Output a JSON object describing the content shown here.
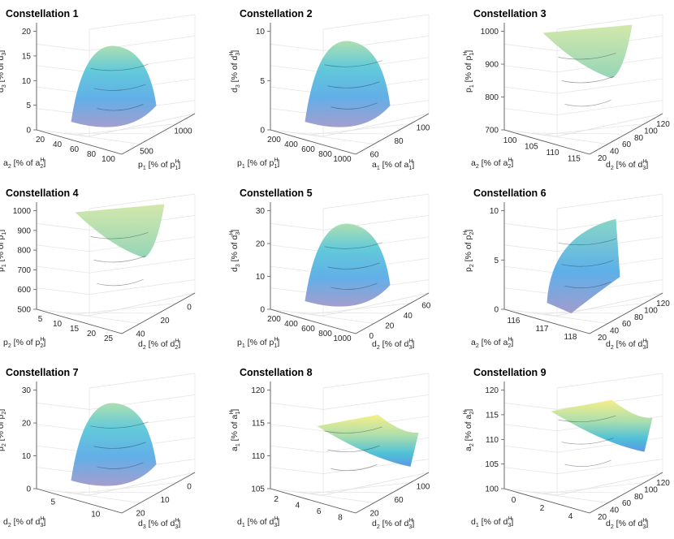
{
  "colors": {
    "low": "#9b94c9",
    "mid": "#46b2e6",
    "high": "#93d7b6",
    "top": "#f5ef78",
    "grid": "#e3e3e3",
    "axis": "#5a5a5a"
  },
  "chart_data": [
    {
      "type": "surface",
      "title": "Constellation 1",
      "x": {
        "var": "a",
        "sub": "2",
        "ref": "a",
        "refsup": "H",
        "refsub": "2",
        "ticks": [
          "20",
          "40",
          "60",
          "80",
          "100"
        ]
      },
      "y": {
        "var": "p",
        "sub": "1",
        "ref": "p",
        "refsup": "H",
        "refsub": "1",
        "ticks": [
          "500",
          "1000"
        ]
      },
      "z": {
        "var": "d",
        "sub": "3",
        "ref": "d",
        "refsup": "H",
        "refsub": "3",
        "ticks": [
          "0",
          "5",
          "10",
          "15",
          "20"
        ]
      },
      "zlim": [
        0,
        20
      ],
      "surface_peak": 17
    },
    {
      "type": "surface",
      "title": "Constellation 2",
      "x": {
        "var": "p",
        "sub": "1",
        "ref": "p",
        "refsup": "H",
        "refsub": "1",
        "ticks": [
          "200",
          "400",
          "600",
          "800",
          "1000"
        ]
      },
      "y": {
        "var": "a",
        "sub": "1",
        "ref": "a",
        "refsup": "H",
        "refsub": "1",
        "ticks": [
          "60",
          "80",
          "100"
        ]
      },
      "z": {
        "var": "d",
        "sub": "3",
        "ref": "d",
        "refsup": "H",
        "refsub": "3",
        "ticks": [
          "0",
          "5",
          "10"
        ]
      },
      "zlim": [
        0,
        10
      ],
      "surface_peak": 9
    },
    {
      "type": "surface",
      "title": "Constellation 3",
      "x": {
        "var": "a",
        "sub": "2",
        "ref": "a",
        "refsup": "H",
        "refsub": "2",
        "ticks": [
          "100",
          "105",
          "110",
          "115"
        ]
      },
      "y": {
        "var": "d",
        "sub": "2",
        "ref": "d",
        "refsup": "H",
        "refsub": "3",
        "ticks": [
          "20",
          "40",
          "60",
          "80",
          "100",
          "120"
        ]
      },
      "z": {
        "var": "p",
        "sub": "1",
        "ref": "p",
        "refsup": "H",
        "refsub": "1",
        "ticks": [
          "700",
          "800",
          "900",
          "1000"
        ]
      },
      "zlim": [
        700,
        1000
      ],
      "surface_peak": 1000
    },
    {
      "type": "surface",
      "title": "Constellation 4",
      "x": {
        "var": "p",
        "sub": "2",
        "ref": "p",
        "refsup": "H",
        "refsub": "2",
        "ticks": [
          "5",
          "10",
          "15",
          "20",
          "25"
        ]
      },
      "y": {
        "var": "d",
        "sub": "2",
        "ref": "d",
        "refsup": "H",
        "refsub": "2",
        "ticks": [
          "40",
          "20",
          "0"
        ]
      },
      "z": {
        "var": "p",
        "sub": "1",
        "ref": "p",
        "refsup": "H",
        "refsub": "1",
        "ticks": [
          "500",
          "600",
          "700",
          "800",
          "900",
          "1000"
        ]
      },
      "zlim": [
        500,
        1000
      ],
      "surface_peak": 1000
    },
    {
      "type": "surface",
      "title": "Constellation 5",
      "x": {
        "var": "p",
        "sub": "1",
        "ref": "p",
        "refsup": "H",
        "refsub": "1",
        "ticks": [
          "200",
          "400",
          "600",
          "800",
          "1000"
        ]
      },
      "y": {
        "var": "d",
        "sub": "2",
        "ref": "d",
        "refsup": "H",
        "refsub": "3",
        "ticks": [
          "0",
          "20",
          "40",
          "60"
        ]
      },
      "z": {
        "var": "d",
        "sub": "3",
        "ref": "d",
        "refsup": "H",
        "refsub": "3",
        "ticks": [
          "0",
          "10",
          "20",
          "30"
        ]
      },
      "zlim": [
        0,
        30
      ],
      "surface_peak": 26
    },
    {
      "type": "surface",
      "title": "Constellation 6",
      "x": {
        "var": "a",
        "sub": "2",
        "ref": "a",
        "refsup": "H",
        "refsub": "2",
        "ticks": [
          "116",
          "117",
          "118"
        ]
      },
      "y": {
        "var": "d",
        "sub": "2",
        "ref": "d",
        "refsup": "H",
        "refsub": "3",
        "ticks": [
          "20",
          "40",
          "60",
          "80",
          "100",
          "120"
        ]
      },
      "z": {
        "var": "p",
        "sub": "2",
        "ref": "p",
        "refsup": "H",
        "refsub": "2",
        "ticks": [
          "0",
          "5",
          "10"
        ]
      },
      "zlim": [
        0,
        12
      ],
      "surface_peak": 11
    },
    {
      "type": "surface",
      "title": "Constellation 7",
      "x": {
        "var": "d",
        "sub": "2",
        "ref": "d",
        "refsup": "H",
        "refsub": "3",
        "ticks": [
          "5",
          "10"
        ]
      },
      "y": {
        "var": "d",
        "sub": "3",
        "ref": "d",
        "refsup": "H",
        "refsub": "3",
        "ticks": [
          "20",
          "10",
          "0"
        ]
      },
      "z": {
        "var": "p",
        "sub": "2",
        "ref": "p",
        "refsup": "H",
        "refsub": "2",
        "ticks": [
          "0",
          "10",
          "20",
          "30"
        ]
      },
      "zlim": [
        0,
        30
      ],
      "surface_peak": 26
    },
    {
      "type": "surface",
      "title": "Constellation 8",
      "x": {
        "var": "d",
        "sub": "1",
        "ref": "d",
        "refsup": "H",
        "refsub": "3",
        "ticks": [
          "2",
          "4",
          "6",
          "8"
        ]
      },
      "y": {
        "var": "d",
        "sub": "2",
        "ref": "d",
        "refsup": "H",
        "refsub": "3",
        "ticks": [
          "20",
          "60",
          "100"
        ]
      },
      "z": {
        "var": "a",
        "sub": "1",
        "ref": "a",
        "refsup": "H",
        "refsub": "1",
        "ticks": [
          "105",
          "110",
          "115",
          "120"
        ]
      },
      "zlim": [
        105,
        120
      ],
      "surface_peak": 117
    },
    {
      "type": "surface",
      "title": "Constellation 9",
      "x": {
        "var": "d",
        "sub": "1",
        "ref": "d",
        "refsup": "H",
        "refsub": "3",
        "ticks": [
          "0",
          "2",
          "4"
        ]
      },
      "y": {
        "var": "d",
        "sub": "2",
        "ref": "d",
        "refsup": "H",
        "refsub": "3",
        "ticks": [
          "20",
          "40",
          "60",
          "80",
          "100",
          "120"
        ]
      },
      "z": {
        "var": "a",
        "sub": "2",
        "ref": "a",
        "refsup": "H",
        "refsub": "2",
        "ticks": [
          "100",
          "105",
          "110",
          "115",
          "120"
        ]
      },
      "zlim": [
        100,
        120
      ],
      "surface_peak": 119
    }
  ]
}
